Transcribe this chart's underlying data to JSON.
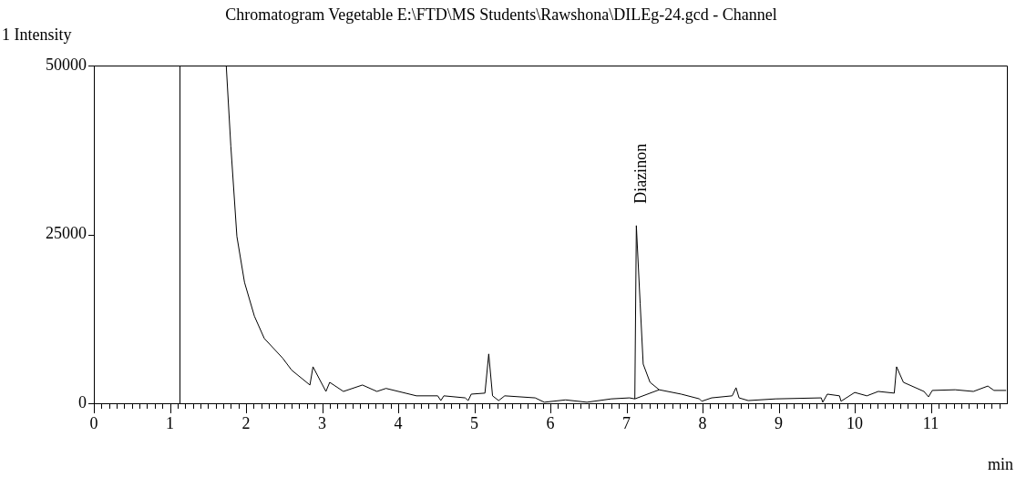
{
  "chart_data": {
    "type": "line",
    "title": "Chromatogram Vegetable E:\\FTD\\MS Students\\Rawshona\\DILEg-24.gcd - Channel",
    "ylabel": "1 Intensity",
    "xlabel": "min",
    "xlim": [
      0,
      12
    ],
    "xticks": [
      0,
      {
        "value": 0.1,
        "label": null
      },
      {
        "value": 0.2,
        "label": null
      },
      {
        "value": 0.3,
        "label": null
      },
      {
        "value": 0.4,
        "label": null
      },
      {
        "value": 0.5,
        "label": null
      },
      {
        "value": 0.6,
        "label": null
      },
      {
        "value": 0.7,
        "label": null
      },
      {
        "value": 0.8,
        "label": null
      },
      {
        "value": 0.9,
        "label": null
      },
      1,
      {
        "value": 1.1,
        "label": null
      },
      {
        "value": 1.2,
        "label": null
      },
      {
        "value": 1.3,
        "label": null
      },
      {
        "value": 1.4,
        "label": null
      },
      {
        "value": 1.5,
        "label": null
      },
      {
        "value": 1.6,
        "label": null
      },
      {
        "value": 1.7,
        "label": null
      },
      {
        "value": 1.8,
        "label": null
      },
      {
        "value": 1.9,
        "label": null
      },
      2,
      {
        "value": 2.1,
        "label": null
      },
      {
        "value": 2.2,
        "label": null
      },
      {
        "value": 2.3,
        "label": null
      },
      {
        "value": 2.4,
        "label": null
      },
      {
        "value": 2.5,
        "label": null
      },
      {
        "value": 2.6,
        "label": null
      },
      {
        "value": 2.7,
        "label": null
      },
      {
        "value": 2.8,
        "label": null
      },
      {
        "value": 2.9,
        "label": null
      },
      3,
      {
        "value": 3.1,
        "label": null
      },
      {
        "value": 3.2,
        "label": null
      },
      {
        "value": 3.3,
        "label": null
      },
      {
        "value": 3.4,
        "label": null
      },
      {
        "value": 3.5,
        "label": null
      },
      {
        "value": 3.6,
        "label": null
      },
      {
        "value": 3.7,
        "label": null
      },
      {
        "value": 3.8,
        "label": null
      },
      {
        "value": 3.9,
        "label": null
      },
      4,
      {
        "value": 4.1,
        "label": null
      },
      {
        "value": 4.2,
        "label": null
      },
      {
        "value": 4.3,
        "label": null
      },
      {
        "value": 4.4,
        "label": null
      },
      {
        "value": 4.5,
        "label": null
      },
      {
        "value": 4.6,
        "label": null
      },
      {
        "value": 4.7,
        "label": null
      },
      {
        "value": 4.8,
        "label": null
      },
      {
        "value": 4.9,
        "label": null
      },
      5,
      {
        "value": 5.1,
        "label": null
      },
      {
        "value": 5.2,
        "label": null
      },
      {
        "value": 5.3,
        "label": null
      },
      {
        "value": 5.4,
        "label": null
      },
      {
        "value": 5.5,
        "label": null
      },
      {
        "value": 5.6,
        "label": null
      },
      {
        "value": 5.7,
        "label": null
      },
      {
        "value": 5.8,
        "label": null
      },
      {
        "value": 5.9,
        "label": null
      },
      6,
      {
        "value": 6.1,
        "label": null
      },
      {
        "value": 6.2,
        "label": null
      },
      {
        "value": 6.3,
        "label": null
      },
      {
        "value": 6.4,
        "label": null
      },
      {
        "value": 6.5,
        "label": null
      },
      {
        "value": 6.6,
        "label": null
      },
      {
        "value": 6.7,
        "label": null
      },
      {
        "value": 6.8,
        "label": null
      },
      {
        "value": 6.9,
        "label": null
      },
      7,
      {
        "value": 7.1,
        "label": null
      },
      {
        "value": 7.2,
        "label": null
      },
      {
        "value": 7.3,
        "label": null
      },
      {
        "value": 7.4,
        "label": null
      },
      {
        "value": 7.5,
        "label": null
      },
      {
        "value": 7.6,
        "label": null
      },
      {
        "value": 7.7,
        "label": null
      },
      {
        "value": 7.8,
        "label": null
      },
      {
        "value": 7.9,
        "label": null
      },
      8,
      {
        "value": 8.1,
        "label": null
      },
      {
        "value": 8.2,
        "label": null
      },
      {
        "value": 8.3,
        "label": null
      },
      {
        "value": 8.4,
        "label": null
      },
      {
        "value": 8.5,
        "label": null
      },
      {
        "value": 8.6,
        "label": null
      },
      {
        "value": 8.7,
        "label": null
      },
      {
        "value": 8.8,
        "label": null
      },
      {
        "value": 8.9,
        "label": null
      },
      9,
      {
        "value": 9.1,
        "label": null
      },
      {
        "value": 9.2,
        "label": null
      },
      {
        "value": 9.3,
        "label": null
      },
      {
        "value": 9.4,
        "label": null
      },
      {
        "value": 9.5,
        "label": null
      },
      {
        "value": 9.6,
        "label": null
      },
      {
        "value": 9.7,
        "label": null
      },
      {
        "value": 9.8,
        "label": null
      },
      {
        "value": 9.9,
        "label": null
      },
      10,
      {
        "value": 10.1,
        "label": null
      },
      {
        "value": 10.2,
        "label": null
      },
      {
        "value": 10.3,
        "label": null
      },
      {
        "value": 10.4,
        "label": null
      },
      {
        "value": 10.5,
        "label": null
      },
      {
        "value": 10.6,
        "label": null
      },
      {
        "value": 10.7,
        "label": null
      },
      {
        "value": 10.8,
        "label": null
      },
      {
        "value": 10.9,
        "label": null
      },
      11,
      {
        "value": 11.1,
        "label": null
      },
      {
        "value": 11.2,
        "label": null
      },
      {
        "value": 11.3,
        "label": null
      },
      {
        "value": 11.4,
        "label": null
      },
      {
        "value": 11.5,
        "label": null
      },
      {
        "value": 11.6,
        "label": null
      },
      {
        "value": 11.7,
        "label": null
      },
      {
        "value": 11.8,
        "label": null
      },
      {
        "value": 11.9,
        "label": null
      }
    ],
    "ylim": [
      0,
      50000
    ],
    "yticks": [
      0,
      25000,
      50000
    ],
    "marker": "none",
    "legend": false,
    "ref_lines": [
      {
        "axis": "x",
        "value": 1.12,
        "color": "#000000"
      }
    ],
    "annotations": [
      {
        "text": "Diazinon",
        "x": 7.13,
        "y": 26300
      }
    ],
    "series": [
      {
        "color": "#000000",
        "x": [
          1.74,
          1.8,
          1.88,
          1.98,
          2.11,
          2.24,
          2.48,
          2.6,
          2.84,
          2.88,
          3.05,
          3.1,
          3.28,
          3.53,
          3.72,
          3.84,
          4.24,
          4.52,
          4.56,
          4.6,
          4.88,
          4.92,
          4.96,
          5.14,
          5.19,
          5.24,
          5.32,
          5.4,
          5.8,
          5.92,
          6.2,
          6.48,
          6.8,
          7.04,
          7.11,
          7.13,
          7.18,
          7.22,
          7.31,
          7.43,
          7.72,
          7.96,
          7.99,
          8.12,
          8.39,
          8.44,
          8.48,
          8.6,
          8.96,
          9.56,
          9.58,
          9.64,
          9.8,
          9.82,
          10.0,
          10.16,
          10.31,
          10.52,
          10.55,
          10.64,
          10.91,
          10.97,
          11.02,
          11.32,
          11.56,
          11.75,
          11.83,
          11.99
        ],
        "values": [
          50000,
          38100,
          24700,
          17900,
          12900,
          9600,
          6700,
          4900,
          2700,
          5400,
          1750,
          3100,
          1750,
          2700,
          1750,
          2200,
          1100,
          1100,
          400,
          1100,
          800,
          400,
          1350,
          1500,
          7300,
          1100,
          400,
          1100,
          800,
          150,
          500,
          150,
          650,
          800,
          650,
          26300,
          14800,
          5800,
          3100,
          2000,
          1350,
          650,
          300,
          800,
          1100,
          2300,
          800,
          400,
          650,
          800,
          150,
          1350,
          1100,
          300,
          1600,
          1100,
          1750,
          1500,
          5400,
          3100,
          1750,
          950,
          1900,
          2000,
          1750,
          2550,
          1900,
          1900
        ]
      },
      {
        "color": "#000000",
        "x": [
          7.11,
          7.43
        ],
        "values": [
          650,
          2000
        ]
      }
    ]
  }
}
